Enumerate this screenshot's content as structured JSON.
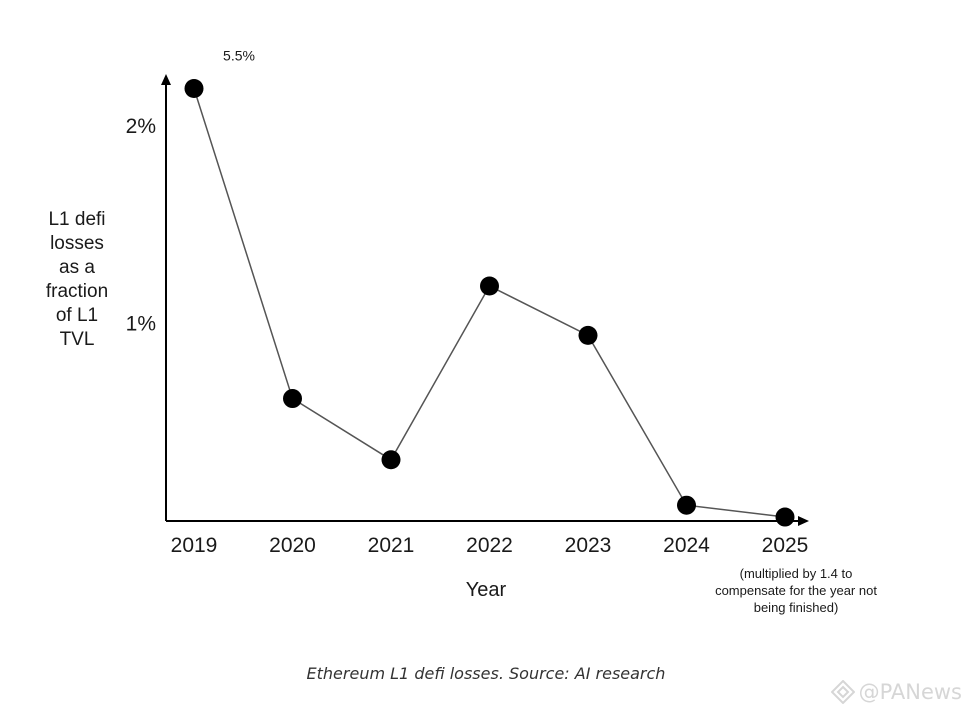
{
  "chart_data": {
    "type": "line",
    "title": "",
    "xlabel": "Year",
    "ylabel_lines": [
      "L1 defi",
      "losses",
      "as a",
      "fraction",
      "of L1",
      "TVL"
    ],
    "x": [
      "2019",
      "2020",
      "2021",
      "2022",
      "2023",
      "2024",
      "2025"
    ],
    "series": [
      {
        "values": [
          2.19,
          0.62,
          0.31,
          1.19,
          0.94,
          0.08,
          0.02
        ]
      }
    ],
    "yticks": [
      {
        "value": 1,
        "label": "1%"
      },
      {
        "value": 2,
        "label": "2%"
      }
    ],
    "ylim": [
      0,
      2.22
    ],
    "grid": false,
    "annotations": [
      {
        "target": "2019",
        "text": "5.5%"
      }
    ],
    "x_note": {
      "target": "2025",
      "lines": [
        "(multiplied by 1.4 to",
        "compensate for the year not",
        "being finished)"
      ]
    },
    "colors": {
      "line": "#555555",
      "marker": "#000000",
      "axis": "#000000"
    }
  },
  "caption": "Ethereum L1 defi losses. Source: AI research",
  "watermark": {
    "text": "@PANews",
    "icon": "panews-logo-icon"
  }
}
